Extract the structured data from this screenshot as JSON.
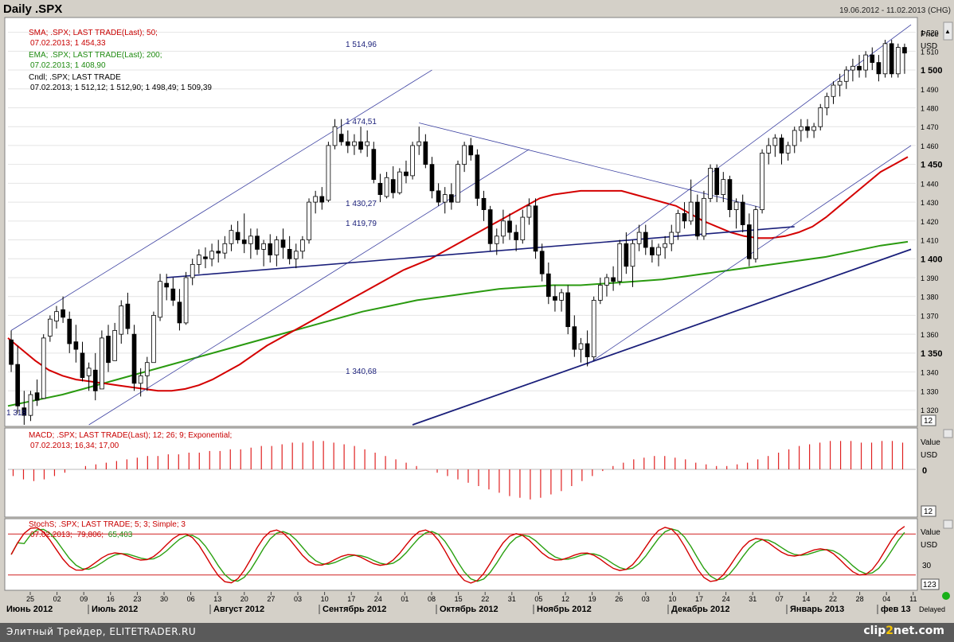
{
  "header": {
    "title": "Daily .SPX",
    "range": "19.06.2012 - 11.02.2013 (CHG)"
  },
  "legend": {
    "sma_label": "SMA; .SPX; LAST TRADE(Last); 50;",
    "sma_value": "07.02.2013; 1 454,33",
    "ema_label": "EMA; .SPX; LAST TRADE(Last); 200;",
    "ema_value": "07.02.2013; 1 408,90",
    "cndl_label": "Cndl; .SPX; LAST TRADE",
    "cndl_value": "07.02.2013; 1 512,12; 1 512,90; 1 498,49; 1 509,39"
  },
  "price_axis": {
    "title": "Price",
    "unit": "USD",
    "ticks": [
      "1 520",
      "1 510",
      "1 500",
      "1 490",
      "1 480",
      "1 470",
      "1 460",
      "1 450",
      "1 440",
      "1 430",
      "1 420",
      "1 410",
      "1 400",
      "1 390",
      "1 380",
      "1 370",
      "1 360",
      "1 350",
      "1 340",
      "1 330",
      "1 320"
    ],
    "badge": "12"
  },
  "annotations": {
    "p1514": "1 514,96",
    "p1474": "1 474,51",
    "p1430": "1 430,27",
    "p1419": "1 419,79",
    "p1340": "1 340,68",
    "p1318": "1 318"
  },
  "macd": {
    "label": "MACD; .SPX; LAST TRADE(Last); 12; 26; 9; Exponential;",
    "value": "07.02.2013; 16,34; 17,00",
    "axis_title": "Value",
    "axis_unit": "USD",
    "zero": "0",
    "badge": "12"
  },
  "stoch": {
    "label": "StochS; .SPX; LAST TRADE; 5; 3; Simple; 3",
    "value_date": "07.02.2013;",
    "value_k": "79,806;",
    "value_d": "65,403",
    "axis_title": "Value",
    "axis_unit": "USD",
    "level": "30",
    "badge": "123"
  },
  "x_axis": {
    "days": [
      "25",
      "02",
      "09",
      "16",
      "23",
      "30",
      "06",
      "13",
      "20",
      "27",
      "03",
      "10",
      "17",
      "24",
      "01",
      "08",
      "15",
      "22",
      "31",
      "05",
      "12",
      "19",
      "26",
      "03",
      "10",
      "17",
      "24",
      "31",
      "07",
      "14",
      "22",
      "28",
      "04",
      "11"
    ],
    "months": [
      "Июнь 2012",
      "Июль 2012",
      "Август 2012",
      "Сентябрь 2012",
      "Октябрь 2012",
      "Ноябрь 2012",
      "Декабрь 2012",
      "Январь 2013",
      "фев 13"
    ],
    "delayed": "Delayed"
  },
  "footer": {
    "left": "Элитный Трейдер, ELITETRADER.RU",
    "right_a": "clip",
    "right_b": "2",
    "right_c": "net.com"
  },
  "colors": {
    "candle_up": "#ffffff",
    "candle_down": "#000000",
    "sma": "#d40000",
    "ema": "#2a9a10",
    "trend": "#1a1f7a",
    "channel": "#3a3fa0",
    "macd": "#e02020",
    "stoch_k": "#d40000",
    "stoch_d": "#2aa010"
  },
  "chart_data": {
    "type": "candlestick",
    "symbol": ".SPX",
    "period": "Daily",
    "ylim": [
      1312,
      1527
    ],
    "annotations_price": [
      1514.96,
      1474.51,
      1430.27,
      1419.79,
      1340.68,
      1318
    ],
    "candles": [
      {
        "o": 1357,
        "h": 1362,
        "l": 1340,
        "c": 1344
      },
      {
        "o": 1344,
        "h": 1354,
        "l": 1318,
        "c": 1322
      },
      {
        "o": 1321,
        "h": 1330,
        "l": 1312,
        "c": 1317
      },
      {
        "o": 1317,
        "h": 1330,
        "l": 1314,
        "c": 1328
      },
      {
        "o": 1329,
        "h": 1336,
        "l": 1322,
        "c": 1325
      },
      {
        "o": 1326,
        "h": 1360,
        "l": 1326,
        "c": 1358
      },
      {
        "o": 1359,
        "h": 1370,
        "l": 1356,
        "c": 1368
      },
      {
        "o": 1367,
        "h": 1375,
        "l": 1363,
        "c": 1372
      },
      {
        "o": 1373,
        "h": 1380,
        "l": 1366,
        "c": 1369
      },
      {
        "o": 1368,
        "h": 1372,
        "l": 1350,
        "c": 1355
      },
      {
        "o": 1356,
        "h": 1365,
        "l": 1345,
        "c": 1352
      },
      {
        "o": 1350,
        "h": 1356,
        "l": 1335,
        "c": 1337
      },
      {
        "o": 1338,
        "h": 1345,
        "l": 1330,
        "c": 1342
      },
      {
        "o": 1341,
        "h": 1350,
        "l": 1325,
        "c": 1330
      },
      {
        "o": 1331,
        "h": 1362,
        "l": 1331,
        "c": 1358
      },
      {
        "o": 1359,
        "h": 1365,
        "l": 1340,
        "c": 1345
      },
      {
        "o": 1346,
        "h": 1366,
        "l": 1346,
        "c": 1362
      },
      {
        "o": 1360,
        "h": 1378,
        "l": 1355,
        "c": 1375
      },
      {
        "o": 1376,
        "h": 1382,
        "l": 1360,
        "c": 1363
      },
      {
        "o": 1360,
        "h": 1365,
        "l": 1330,
        "c": 1334
      },
      {
        "o": 1334,
        "h": 1342,
        "l": 1327,
        "c": 1338
      },
      {
        "o": 1338,
        "h": 1348,
        "l": 1330,
        "c": 1345
      },
      {
        "o": 1345,
        "h": 1372,
        "l": 1345,
        "c": 1370
      },
      {
        "o": 1369,
        "h": 1392,
        "l": 1367,
        "c": 1388
      },
      {
        "o": 1387,
        "h": 1392,
        "l": 1378,
        "c": 1385
      },
      {
        "o": 1384,
        "h": 1390,
        "l": 1375,
        "c": 1378
      },
      {
        "o": 1377,
        "h": 1384,
        "l": 1362,
        "c": 1366
      },
      {
        "o": 1366,
        "h": 1393,
        "l": 1365,
        "c": 1390
      },
      {
        "o": 1390,
        "h": 1400,
        "l": 1386,
        "c": 1397
      },
      {
        "o": 1397,
        "h": 1405,
        "l": 1392,
        "c": 1402
      },
      {
        "o": 1401,
        "h": 1406,
        "l": 1395,
        "c": 1400
      },
      {
        "o": 1400,
        "h": 1408,
        "l": 1396,
        "c": 1404
      },
      {
        "o": 1404,
        "h": 1410,
        "l": 1398,
        "c": 1403
      },
      {
        "o": 1403,
        "h": 1412,
        "l": 1400,
        "c": 1408
      },
      {
        "o": 1408,
        "h": 1418,
        "l": 1404,
        "c": 1415
      },
      {
        "o": 1414,
        "h": 1420,
        "l": 1408,
        "c": 1410
      },
      {
        "o": 1410,
        "h": 1424,
        "l": 1403,
        "c": 1408
      },
      {
        "o": 1408,
        "h": 1416,
        "l": 1400,
        "c": 1412
      },
      {
        "o": 1412,
        "h": 1416,
        "l": 1402,
        "c": 1405
      },
      {
        "o": 1405,
        "h": 1410,
        "l": 1396,
        "c": 1408
      },
      {
        "o": 1408,
        "h": 1413,
        "l": 1398,
        "c": 1402
      },
      {
        "o": 1402,
        "h": 1412,
        "l": 1396,
        "c": 1410
      },
      {
        "o": 1410,
        "h": 1416,
        "l": 1400,
        "c": 1406
      },
      {
        "o": 1405,
        "h": 1412,
        "l": 1397,
        "c": 1400
      },
      {
        "o": 1400,
        "h": 1408,
        "l": 1395,
        "c": 1404
      },
      {
        "o": 1404,
        "h": 1412,
        "l": 1400,
        "c": 1410
      },
      {
        "o": 1410,
        "h": 1432,
        "l": 1408,
        "c": 1430
      },
      {
        "o": 1430,
        "h": 1436,
        "l": 1424,
        "c": 1433
      },
      {
        "o": 1433,
        "h": 1438,
        "l": 1426,
        "c": 1430
      },
      {
        "o": 1431,
        "h": 1462,
        "l": 1430,
        "c": 1460
      },
      {
        "o": 1460,
        "h": 1474,
        "l": 1458,
        "c": 1470
      },
      {
        "o": 1466,
        "h": 1474,
        "l": 1460,
        "c": 1462
      },
      {
        "o": 1462,
        "h": 1468,
        "l": 1456,
        "c": 1460
      },
      {
        "o": 1460,
        "h": 1466,
        "l": 1455,
        "c": 1462
      },
      {
        "o": 1462,
        "h": 1470,
        "l": 1456,
        "c": 1458
      },
      {
        "o": 1460,
        "h": 1468,
        "l": 1454,
        "c": 1462
      },
      {
        "o": 1458,
        "h": 1462,
        "l": 1440,
        "c": 1442
      },
      {
        "o": 1440,
        "h": 1445,
        "l": 1430,
        "c": 1434
      },
      {
        "o": 1433,
        "h": 1446,
        "l": 1432,
        "c": 1443
      },
      {
        "o": 1442,
        "h": 1449,
        "l": 1432,
        "c": 1435
      },
      {
        "o": 1435,
        "h": 1448,
        "l": 1434,
        "c": 1446
      },
      {
        "o": 1446,
        "h": 1452,
        "l": 1440,
        "c": 1444
      },
      {
        "o": 1444,
        "h": 1462,
        "l": 1442,
        "c": 1460
      },
      {
        "o": 1460,
        "h": 1470,
        "l": 1455,
        "c": 1462
      },
      {
        "o": 1462,
        "h": 1466,
        "l": 1448,
        "c": 1450
      },
      {
        "o": 1450,
        "h": 1454,
        "l": 1432,
        "c": 1436
      },
      {
        "o": 1436,
        "h": 1440,
        "l": 1428,
        "c": 1430
      },
      {
        "o": 1430,
        "h": 1438,
        "l": 1424,
        "c": 1434
      },
      {
        "o": 1434,
        "h": 1440,
        "l": 1426,
        "c": 1430
      },
      {
        "o": 1430,
        "h": 1452,
        "l": 1430,
        "c": 1450
      },
      {
        "o": 1450,
        "h": 1462,
        "l": 1446,
        "c": 1460
      },
      {
        "o": 1460,
        "h": 1464,
        "l": 1452,
        "c": 1455
      },
      {
        "o": 1455,
        "h": 1458,
        "l": 1428,
        "c": 1432
      },
      {
        "o": 1432,
        "h": 1436,
        "l": 1420,
        "c": 1426
      },
      {
        "o": 1426,
        "h": 1428,
        "l": 1404,
        "c": 1408
      },
      {
        "o": 1408,
        "h": 1416,
        "l": 1402,
        "c": 1412
      },
      {
        "o": 1412,
        "h": 1426,
        "l": 1408,
        "c": 1420
      },
      {
        "o": 1420,
        "h": 1424,
        "l": 1410,
        "c": 1414
      },
      {
        "o": 1414,
        "h": 1418,
        "l": 1404,
        "c": 1410
      },
      {
        "o": 1410,
        "h": 1426,
        "l": 1408,
        "c": 1422
      },
      {
        "o": 1422,
        "h": 1432,
        "l": 1418,
        "c": 1428
      },
      {
        "o": 1428,
        "h": 1432,
        "l": 1400,
        "c": 1404
      },
      {
        "o": 1404,
        "h": 1408,
        "l": 1388,
        "c": 1392
      },
      {
        "o": 1392,
        "h": 1398,
        "l": 1376,
        "c": 1380
      },
      {
        "o": 1380,
        "h": 1386,
        "l": 1372,
        "c": 1378
      },
      {
        "o": 1378,
        "h": 1384,
        "l": 1372,
        "c": 1382
      },
      {
        "o": 1382,
        "h": 1386,
        "l": 1360,
        "c": 1364
      },
      {
        "o": 1364,
        "h": 1370,
        "l": 1348,
        "c": 1352
      },
      {
        "o": 1352,
        "h": 1358,
        "l": 1345,
        "c": 1355
      },
      {
        "o": 1355,
        "h": 1362,
        "l": 1343,
        "c": 1348
      },
      {
        "o": 1348,
        "h": 1380,
        "l": 1346,
        "c": 1378
      },
      {
        "o": 1378,
        "h": 1390,
        "l": 1376,
        "c": 1386
      },
      {
        "o": 1386,
        "h": 1392,
        "l": 1380,
        "c": 1390
      },
      {
        "o": 1390,
        "h": 1396,
        "l": 1383,
        "c": 1388
      },
      {
        "o": 1388,
        "h": 1410,
        "l": 1386,
        "c": 1408
      },
      {
        "o": 1408,
        "h": 1414,
        "l": 1392,
        "c": 1396
      },
      {
        "o": 1396,
        "h": 1410,
        "l": 1385,
        "c": 1408
      },
      {
        "o": 1408,
        "h": 1418,
        "l": 1404,
        "c": 1414
      },
      {
        "o": 1414,
        "h": 1418,
        "l": 1402,
        "c": 1406
      },
      {
        "o": 1406,
        "h": 1410,
        "l": 1398,
        "c": 1402
      },
      {
        "o": 1402,
        "h": 1408,
        "l": 1396,
        "c": 1406
      },
      {
        "o": 1406,
        "h": 1412,
        "l": 1400,
        "c": 1408
      },
      {
        "o": 1408,
        "h": 1418,
        "l": 1404,
        "c": 1414
      },
      {
        "o": 1414,
        "h": 1426,
        "l": 1410,
        "c": 1424
      },
      {
        "o": 1424,
        "h": 1430,
        "l": 1416,
        "c": 1420
      },
      {
        "o": 1420,
        "h": 1442,
        "l": 1418,
        "c": 1430
      },
      {
        "o": 1430,
        "h": 1434,
        "l": 1410,
        "c": 1412
      },
      {
        "o": 1412,
        "h": 1436,
        "l": 1410,
        "c": 1432
      },
      {
        "o": 1432,
        "h": 1450,
        "l": 1430,
        "c": 1448
      },
      {
        "o": 1448,
        "h": 1450,
        "l": 1430,
        "c": 1434
      },
      {
        "o": 1434,
        "h": 1446,
        "l": 1430,
        "c": 1442
      },
      {
        "o": 1442,
        "h": 1444,
        "l": 1422,
        "c": 1426
      },
      {
        "o": 1426,
        "h": 1432,
        "l": 1416,
        "c": 1430
      },
      {
        "o": 1430,
        "h": 1434,
        "l": 1414,
        "c": 1418
      },
      {
        "o": 1418,
        "h": 1424,
        "l": 1396,
        "c": 1400
      },
      {
        "o": 1400,
        "h": 1428,
        "l": 1398,
        "c": 1426
      },
      {
        "o": 1426,
        "h": 1458,
        "l": 1424,
        "c": 1456
      },
      {
        "o": 1456,
        "h": 1464,
        "l": 1450,
        "c": 1460
      },
      {
        "o": 1460,
        "h": 1466,
        "l": 1454,
        "c": 1464
      },
      {
        "o": 1464,
        "h": 1466,
        "l": 1450,
        "c": 1456
      },
      {
        "o": 1456,
        "h": 1462,
        "l": 1452,
        "c": 1460
      },
      {
        "o": 1460,
        "h": 1470,
        "l": 1456,
        "c": 1468
      },
      {
        "o": 1468,
        "h": 1474,
        "l": 1462,
        "c": 1470
      },
      {
        "o": 1470,
        "h": 1474,
        "l": 1464,
        "c": 1468
      },
      {
        "o": 1468,
        "h": 1472,
        "l": 1464,
        "c": 1470
      },
      {
        "o": 1470,
        "h": 1482,
        "l": 1468,
        "c": 1480
      },
      {
        "o": 1480,
        "h": 1488,
        "l": 1476,
        "c": 1486
      },
      {
        "o": 1486,
        "h": 1494,
        "l": 1482,
        "c": 1492
      },
      {
        "o": 1492,
        "h": 1498,
        "l": 1486,
        "c": 1494
      },
      {
        "o": 1494,
        "h": 1502,
        "l": 1490,
        "c": 1500
      },
      {
        "o": 1500,
        "h": 1506,
        "l": 1494,
        "c": 1502
      },
      {
        "o": 1502,
        "h": 1508,
        "l": 1496,
        "c": 1500
      },
      {
        "o": 1500,
        "h": 1510,
        "l": 1496,
        "c": 1508
      },
      {
        "o": 1508,
        "h": 1512,
        "l": 1500,
        "c": 1504
      },
      {
        "o": 1504,
        "h": 1508,
        "l": 1494,
        "c": 1498
      },
      {
        "o": 1498,
        "h": 1516,
        "l": 1496,
        "c": 1514
      },
      {
        "o": 1514,
        "h": 1516,
        "l": 1496,
        "c": 1498
      },
      {
        "o": 1498,
        "h": 1514,
        "l": 1496,
        "c": 1512
      },
      {
        "o": 1512,
        "h": 1514,
        "l": 1498,
        "c": 1509
      }
    ],
    "sma50": [
      1358,
      1352,
      1346,
      1341,
      1338,
      1336,
      1335,
      1334,
      1333,
      1332,
      1331,
      1330,
      1330,
      1331,
      1333,
      1336,
      1340,
      1344,
      1349,
      1354,
      1358,
      1362,
      1366,
      1370,
      1374,
      1378,
      1382,
      1386,
      1390,
      1394,
      1397,
      1400,
      1404,
      1408,
      1412,
      1416,
      1420,
      1424,
      1428,
      1432,
      1434,
      1435,
      1436,
      1436,
      1436,
      1436,
      1434,
      1432,
      1430,
      1428,
      1424,
      1420,
      1417,
      1414,
      1412,
      1411,
      1411,
      1412,
      1414,
      1417,
      1422,
      1428,
      1434,
      1440,
      1446,
      1450,
      1454
    ],
    "ema200": [
      1322,
      1325,
      1328,
      1332,
      1336,
      1340,
      1344,
      1348,
      1352,
      1356,
      1360,
      1364,
      1368,
      1372,
      1375,
      1378,
      1380,
      1382,
      1384,
      1385,
      1386,
      1386,
      1387,
      1388,
      1389,
      1391,
      1393,
      1395,
      1397,
      1399,
      1401,
      1404,
      1407,
      1409
    ],
    "macd_histogram": [
      -4,
      -6,
      -7,
      -6,
      -4,
      -2,
      0,
      2,
      3,
      4,
      5,
      6,
      7,
      8,
      8,
      9,
      9,
      10,
      10,
      11,
      11,
      12,
      12,
      13,
      14,
      14,
      15,
      16,
      16,
      17,
      17,
      16,
      15,
      14,
      12,
      10,
      8,
      6,
      4,
      2,
      0,
      -2,
      -4,
      -6,
      -8,
      -10,
      -12,
      -14,
      -16,
      -17,
      -18,
      -17,
      -15,
      -13,
      -10,
      -7,
      -4,
      -1,
      2,
      4,
      6,
      7,
      8,
      8,
      7,
      6,
      4,
      3,
      2,
      2,
      3,
      4,
      6,
      8,
      10,
      12,
      14,
      15,
      16,
      17,
      17,
      17,
      16,
      16,
      17,
      17,
      16
    ]
  }
}
